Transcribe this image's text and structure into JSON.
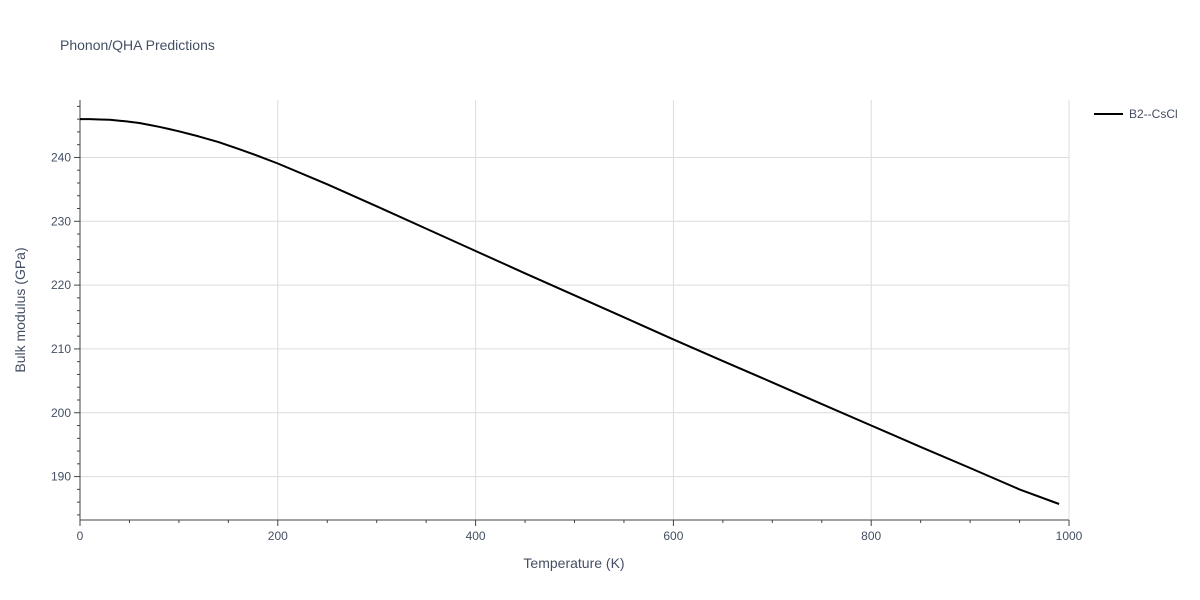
{
  "chart_data": {
    "type": "line",
    "title": "Phonon/QHA Predictions",
    "xlabel": "Temperature (K)",
    "ylabel": "Bulk modulus (GPa)",
    "xlim": [
      0,
      1000
    ],
    "ylim": [
      183.2,
      249.0
    ],
    "x_ticks": [
      0,
      200,
      400,
      600,
      800,
      1000
    ],
    "y_ticks": [
      190,
      200,
      210,
      220,
      230,
      240
    ],
    "grid": true,
    "legend_position": "top-right",
    "series": [
      {
        "name": "B2--CsCl",
        "color": "#000000",
        "x": [
          0,
          10,
          20,
          30,
          40,
          50,
          60,
          70,
          80,
          90,
          100,
          120,
          140,
          160,
          180,
          200,
          250,
          300,
          350,
          400,
          450,
          500,
          550,
          600,
          650,
          700,
          750,
          800,
          850,
          900,
          950,
          990
        ],
        "y": [
          246.0,
          246.0,
          245.95,
          245.9,
          245.75,
          245.6,
          245.4,
          245.1,
          244.8,
          244.45,
          244.1,
          243.3,
          242.4,
          241.35,
          240.25,
          239.05,
          235.8,
          232.35,
          228.85,
          225.35,
          221.85,
          218.4,
          214.95,
          211.5,
          208.1,
          204.75,
          201.35,
          198.0,
          194.65,
          191.35,
          188.0,
          185.7
        ]
      }
    ]
  }
}
